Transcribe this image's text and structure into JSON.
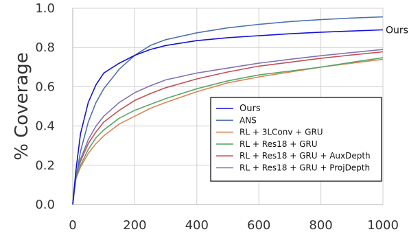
{
  "chart_data": {
    "type": "line",
    "title": "",
    "xlabel": "",
    "ylabel": "% Coverage",
    "xlim": [
      0,
      1000
    ],
    "ylim": [
      0,
      1.0
    ],
    "x_ticks": [
      "0",
      "200",
      "400",
      "600",
      "800",
      "1000"
    ],
    "y_ticks": [
      "0.0",
      "0.2",
      "0.4",
      "0.6",
      "0.8",
      "1.0"
    ],
    "grid": true,
    "legend_position": "lower-right",
    "annotation": "Ours",
    "x": [
      0,
      10,
      25,
      50,
      75,
      100,
      150,
      200,
      250,
      300,
      400,
      500,
      600,
      700,
      800,
      900,
      1000
    ],
    "series": [
      {
        "name": "Ours",
        "color": "#1212d6",
        "values": [
          0,
          0.17,
          0.36,
          0.52,
          0.61,
          0.67,
          0.72,
          0.76,
          0.79,
          0.81,
          0.835,
          0.85,
          0.86,
          0.87,
          0.878,
          0.884,
          0.89
        ]
      },
      {
        "name": "ANS",
        "color": "#4c72b0",
        "values": [
          0,
          0.13,
          0.27,
          0.42,
          0.52,
          0.59,
          0.69,
          0.76,
          0.81,
          0.84,
          0.875,
          0.9,
          0.918,
          0.932,
          0.942,
          0.95,
          0.956
        ]
      },
      {
        "name": "RL + 3LConv + GRU",
        "color": "#dd8452",
        "values": [
          0,
          0.13,
          0.19,
          0.26,
          0.31,
          0.35,
          0.41,
          0.45,
          0.49,
          0.52,
          0.575,
          0.62,
          0.65,
          0.675,
          0.7,
          0.72,
          0.74
        ]
      },
      {
        "name": "RL + Res18 + GRU",
        "color": "#55a868",
        "values": [
          0,
          0.14,
          0.2,
          0.28,
          0.34,
          0.38,
          0.44,
          0.48,
          0.51,
          0.54,
          0.59,
          0.63,
          0.66,
          0.68,
          0.7,
          0.725,
          0.748
        ]
      },
      {
        "name": "RL + Res18 + GRU + AuxDepth",
        "color": "#c44e52",
        "values": [
          0,
          0.15,
          0.22,
          0.31,
          0.37,
          0.42,
          0.48,
          0.53,
          0.565,
          0.595,
          0.64,
          0.675,
          0.705,
          0.725,
          0.745,
          0.762,
          0.778
        ]
      },
      {
        "name": "RL + Res18 + GRU + ProjDepth",
        "color": "#8172b2",
        "values": [
          0,
          0.15,
          0.23,
          0.33,
          0.4,
          0.45,
          0.52,
          0.57,
          0.605,
          0.635,
          0.67,
          0.695,
          0.72,
          0.74,
          0.758,
          0.774,
          0.79
        ]
      }
    ]
  }
}
